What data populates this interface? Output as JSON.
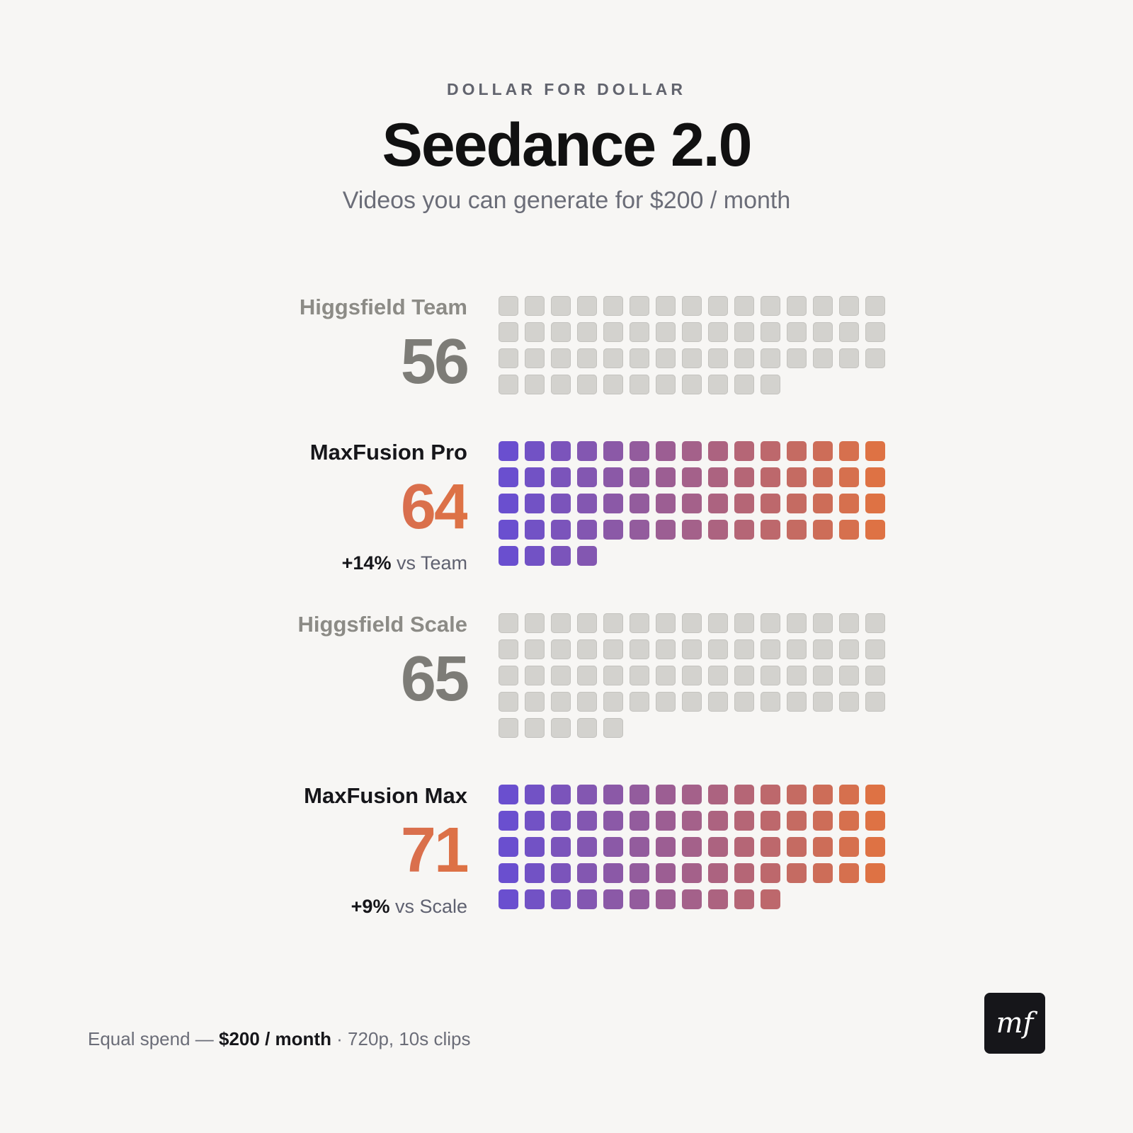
{
  "header": {
    "eyebrow": "DOLLAR FOR DOLLAR",
    "title": "Seedance 2.0",
    "subtitle": "Videos you can generate for $200 / month"
  },
  "colors": {
    "muted_cell": "#d3d2ce",
    "gradient_start": "#6a4fcf",
    "gradient_end": "#de7244"
  },
  "chart_data": {
    "type": "waffle",
    "title": "Seedance 2.0",
    "subtitle": "Videos you can generate for $200 / month",
    "columns": 15,
    "unit": "1 square = 1 video",
    "series": [
      {
        "name": "Higgsfield Team",
        "value": 56,
        "style": "muted",
        "note": null
      },
      {
        "name": "MaxFusion Pro",
        "value": 64,
        "style": "accent",
        "note": {
          "delta": "+14%",
          "text": " vs Team"
        }
      },
      {
        "name": "Higgsfield Scale",
        "value": 65,
        "style": "muted",
        "note": null
      },
      {
        "name": "MaxFusion Max",
        "value": 71,
        "style": "accent",
        "note": {
          "delta": "+9%",
          "text": " vs Scale"
        }
      }
    ]
  },
  "footer": {
    "prefix": "Equal spend — ",
    "bold": "$200 / month",
    "suffix": " · 720p, 10s clips"
  },
  "logo": {
    "text": "mf",
    "icon": "mf-logo"
  }
}
